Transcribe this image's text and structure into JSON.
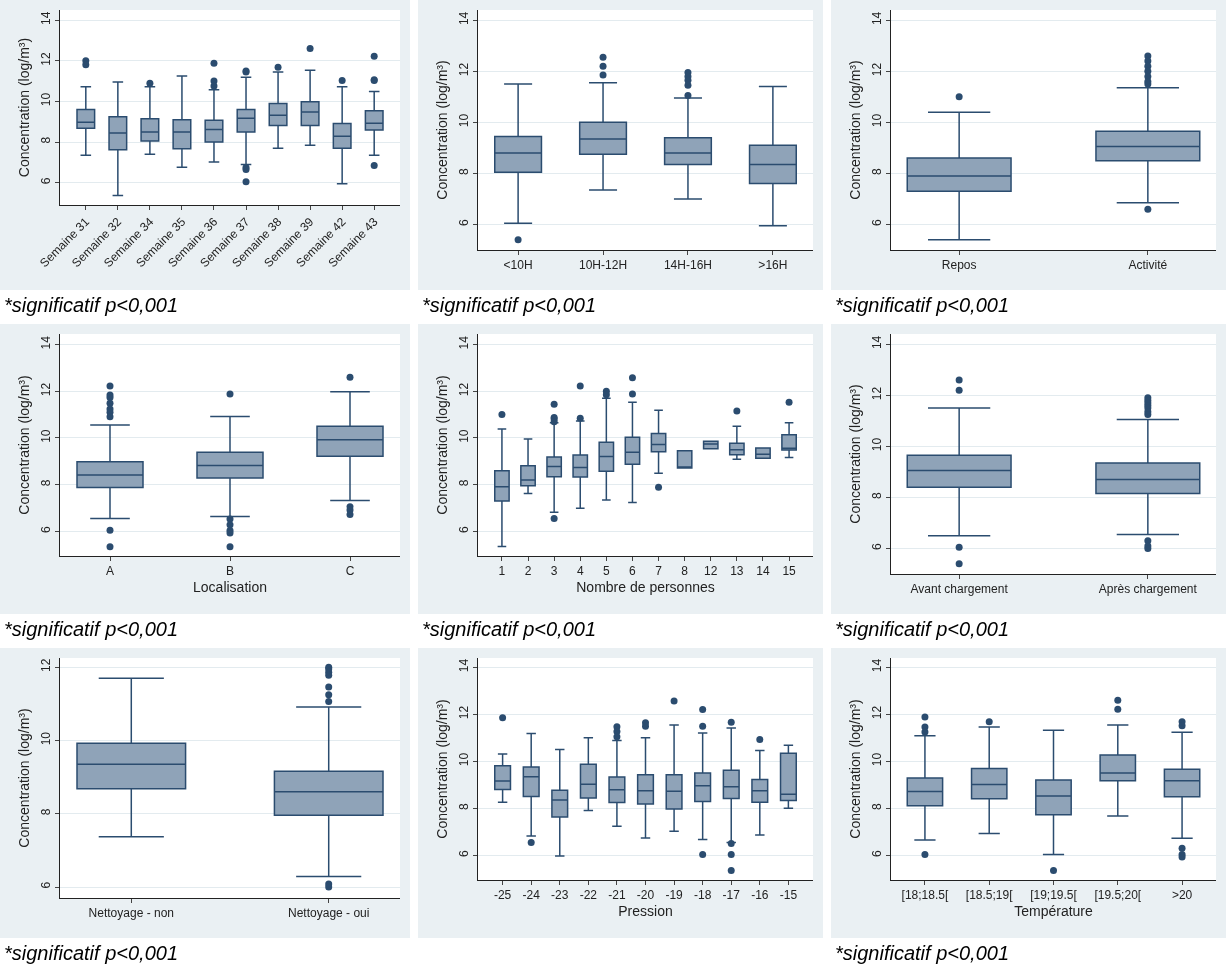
{
  "chart_data": [
    {
      "type": "box",
      "ylabel": "Concentration (log/m³)",
      "annotations": [
        "*significatif p<0,001"
      ],
      "color": "#8fa3b8",
      "grid": "y",
      "ylim": [
        4.9,
        14.5
      ],
      "yticks": [
        6,
        8,
        10,
        12,
        14
      ],
      "categories": [
        "Semaine 31",
        "Semaine 32",
        "Semaine 34",
        "Semaine 35",
        "Semaine 36",
        "Semaine 37",
        "Semaine 38",
        "Semaine 39",
        "Semaine 42",
        "Semaine 43"
      ],
      "boxes": [
        {
          "low": 7.35,
          "q1": 8.68,
          "median": 8.98,
          "q3": 9.6,
          "high": 10.72,
          "outliers": [
            12.0,
            11.8
          ]
        },
        {
          "low": 5.37,
          "q1": 7.62,
          "median": 8.44,
          "q3": 9.24,
          "high": 10.95
        },
        {
          "low": 7.4,
          "q1": 8.05,
          "median": 8.49,
          "q3": 9.15,
          "high": 10.72,
          "outliers": [
            10.9
          ]
        },
        {
          "low": 6.76,
          "q1": 7.67,
          "median": 8.49,
          "q3": 9.1,
          "high": 11.25
        },
        {
          "low": 7.02,
          "q1": 8.0,
          "median": 8.62,
          "q3": 9.07,
          "high": 10.58,
          "outliers": [
            11.88,
            11.0,
            10.76
          ]
        },
        {
          "low": 6.9,
          "q1": 8.5,
          "median": 9.17,
          "q3": 9.6,
          "high": 11.19,
          "outliers": [
            11.5,
            11.45,
            6.75,
            6.65,
            6.05
          ]
        },
        {
          "low": 7.7,
          "q1": 8.81,
          "median": 9.32,
          "q3": 9.9,
          "high": 11.45,
          "outliers": [
            11.68
          ]
        },
        {
          "low": 7.84,
          "q1": 8.81,
          "median": 9.48,
          "q3": 9.98,
          "high": 11.54,
          "outliers": [
            12.6
          ]
        },
        {
          "low": 5.95,
          "q1": 7.7,
          "median": 8.29,
          "q3": 8.91,
          "high": 10.72,
          "outliers": [
            11.03
          ]
        },
        {
          "low": 7.35,
          "q1": 8.59,
          "median": 8.93,
          "q3": 9.54,
          "high": 10.49,
          "outliers": [
            12.22,
            11.07,
            11.03,
            6.85
          ]
        }
      ]
    },
    {
      "type": "box",
      "ylabel": "Concentration (log/m³)",
      "annotations": [
        "*significatif p<0,001"
      ],
      "color": "#8fa3b8",
      "grid": "y",
      "ylim": [
        5.0,
        14.4
      ],
      "yticks": [
        6,
        8,
        10,
        12,
        14
      ],
      "categories": [
        "<10H",
        "10H-12H",
        "14H-16H",
        ">16H"
      ],
      "boxes": [
        {
          "low": 6.05,
          "q1": 8.05,
          "median": 8.8,
          "q3": 9.45,
          "high": 11.5,
          "outliers": [
            5.4
          ]
        },
        {
          "low": 7.35,
          "q1": 8.75,
          "median": 9.35,
          "q3": 10.0,
          "high": 11.55,
          "outliers": [
            12.55,
            12.2,
            11.85
          ]
        },
        {
          "low": 7.0,
          "q1": 8.35,
          "median": 8.8,
          "q3": 9.4,
          "high": 10.95,
          "outliers": [
            11.95,
            11.8,
            11.65,
            11.45,
            11.05
          ]
        },
        {
          "low": 5.95,
          "q1": 7.6,
          "median": 8.35,
          "q3": 9.1,
          "high": 11.4
        }
      ]
    },
    {
      "type": "box",
      "ylabel": "Concentration (log/m³)",
      "annotations": [
        "*significatif p<0,001"
      ],
      "color": "#8fa3b8",
      "grid": "y",
      "ylim": [
        5.0,
        14.4
      ],
      "yticks": [
        6,
        8,
        10,
        12,
        14
      ],
      "categories": [
        "Repos",
        "Activité"
      ],
      "boxes": [
        {
          "low": 5.4,
          "q1": 7.3,
          "median": 7.9,
          "q3": 8.6,
          "high": 10.4,
          "outliers": [
            11.0
          ]
        },
        {
          "low": 6.85,
          "q1": 8.5,
          "median": 9.05,
          "q3": 9.65,
          "high": 11.35,
          "outliers": [
            12.6,
            12.4,
            12.2,
            12.0,
            11.8,
            11.6,
            11.5,
            6.6
          ]
        }
      ]
    },
    {
      "type": "box",
      "ylabel": "Concentration (log/m³)",
      "xlabel": "Localisation",
      "annotations": [
        "*significatif p<0,001"
      ],
      "color": "#8fa3b8",
      "grid": "y",
      "ylim": [
        4.95,
        14.45
      ],
      "yticks": [
        6,
        8,
        10,
        12,
        14
      ],
      "categories": [
        "A",
        "B",
        "C"
      ],
      "boxes": [
        {
          "low": 6.56,
          "q1": 7.88,
          "median": 8.42,
          "q3": 8.98,
          "high": 10.56,
          "outliers": [
            12.23,
            11.84,
            11.73,
            11.49,
            11.24,
            11.1,
            10.91,
            6.05,
            5.35
          ]
        },
        {
          "low": 6.64,
          "q1": 8.29,
          "median": 8.82,
          "q3": 9.39,
          "high": 10.92,
          "outliers": [
            11.88,
            6.53,
            6.29,
            6.04,
            5.93,
            5.35
          ]
        },
        {
          "low": 7.32,
          "q1": 9.22,
          "median": 9.93,
          "q3": 10.5,
          "high": 11.98,
          "outliers": [
            12.6,
            7.06,
            6.92,
            6.73
          ]
        }
      ]
    },
    {
      "type": "box",
      "ylabel": "Concentration (log/m³)",
      "xlabel": "Nombre de personnes",
      "annotations": [
        "*significatif p<0,001"
      ],
      "color": "#8fa3b8",
      "grid": "y",
      "ylim": [
        4.95,
        14.45
      ],
      "yticks": [
        6,
        8,
        10,
        12,
        14
      ],
      "categories": [
        "1",
        "2",
        "3",
        "4",
        "5",
        "6",
        "7",
        "8",
        "12",
        "13",
        "14",
        "15"
      ],
      "boxes": [
        {
          "low": 5.36,
          "q1": 7.3,
          "median": 7.91,
          "q3": 8.6,
          "high": 10.39,
          "outliers": [
            11.0
          ]
        },
        {
          "low": 7.62,
          "q1": 7.96,
          "median": 8.2,
          "q3": 8.81,
          "high": 9.96
        },
        {
          "low": 6.82,
          "q1": 8.34,
          "median": 8.78,
          "q3": 9.19,
          "high": 10.65,
          "outliers": [
            11.44,
            10.88,
            10.81,
            10.7,
            6.56
          ]
        },
        {
          "low": 6.99,
          "q1": 8.33,
          "median": 8.74,
          "q3": 9.27,
          "high": 10.73,
          "outliers": [
            12.22,
            10.84
          ]
        },
        {
          "low": 7.35,
          "q1": 8.58,
          "median": 9.21,
          "q3": 9.82,
          "high": 11.7,
          "outliers": [
            12.0,
            11.85
          ]
        },
        {
          "low": 7.24,
          "q1": 8.88,
          "median": 9.39,
          "q3": 10.03,
          "high": 11.53,
          "outliers": [
            12.58,
            11.88
          ]
        },
        {
          "low": 8.49,
          "q1": 9.41,
          "median": 9.72,
          "q3": 10.19,
          "high": 11.19,
          "outliers": [
            7.89
          ]
        },
        {
          "low": 8.72,
          "q1": 8.72,
          "median": 8.72,
          "q3": 9.45,
          "high": 9.45
        },
        {
          "low": 9.54,
          "q1": 9.54,
          "median": 9.74,
          "q3": 9.86,
          "high": 9.86
        },
        {
          "low": 9.09,
          "q1": 9.28,
          "median": 9.5,
          "q3": 9.78,
          "high": 10.5,
          "outliers": [
            11.15
          ]
        },
        {
          "low": 9.13,
          "q1": 9.13,
          "median": 9.3,
          "q3": 9.57,
          "high": 9.57
        },
        {
          "low": 9.17,
          "q1": 9.49,
          "median": 9.56,
          "q3": 10.14,
          "high": 10.65,
          "outliers": [
            11.53
          ]
        }
      ]
    },
    {
      "type": "box",
      "ylabel": "Concentration (log/m³)",
      "annotations": [
        "*significatif p<0,001"
      ],
      "color": "#8fa3b8",
      "grid": "y",
      "ylim": [
        5.0,
        14.4
      ],
      "yticks": [
        6,
        8,
        10,
        12,
        14
      ],
      "categories": [
        "Avant chargement",
        "Après chargement"
      ],
      "boxes": [
        {
          "low": 6.5,
          "q1": 8.4,
          "median": 9.05,
          "q3": 9.65,
          "high": 11.5,
          "outliers": [
            12.6,
            12.2,
            6.05,
            5.4
          ]
        },
        {
          "low": 6.55,
          "q1": 8.15,
          "median": 8.7,
          "q3": 9.35,
          "high": 11.05,
          "outliers": [
            11.9,
            11.8,
            11.7,
            11.6,
            11.5,
            11.35,
            11.25,
            6.3,
            6.1,
            6.0
          ]
        }
      ]
    },
    {
      "type": "box",
      "ylabel": "Concentration (log/m³)",
      "annotations": [
        "*significatif p<0,001"
      ],
      "color": "#8fa3b8",
      "grid": "y",
      "ylim": [
        5.7,
        12.25
      ],
      "yticks": [
        6,
        8,
        10,
        12
      ],
      "categories": [
        "Nettoyage - non",
        "Nettoyage - oui"
      ],
      "boxes": [
        {
          "low": 7.37,
          "q1": 8.68,
          "median": 9.35,
          "q3": 9.92,
          "high": 11.7
        },
        {
          "low": 6.29,
          "q1": 7.96,
          "median": 8.6,
          "q3": 9.16,
          "high": 10.91,
          "outliers": [
            12.0,
            11.95,
            11.86,
            11.78,
            11.46,
            11.25,
            11.06,
            6.08,
            6.0
          ]
        }
      ]
    },
    {
      "type": "box",
      "ylabel": "Concentration (log/m³)",
      "xlabel": "Pression",
      "color": "#8fa3b8",
      "grid": "y",
      "ylim": [
        4.95,
        14.4
      ],
      "yticks": [
        6,
        8,
        10,
        12,
        14
      ],
      "categories": [
        "-25",
        "-24",
        "-23",
        "-22",
        "-21",
        "-20",
        "-19",
        "-18",
        "-17",
        "-16",
        "-15"
      ],
      "boxes": [
        {
          "low": 8.26,
          "q1": 8.8,
          "median": 9.16,
          "q3": 9.81,
          "high": 10.31,
          "outliers": [
            11.86
          ]
        },
        {
          "low": 6.82,
          "q1": 8.5,
          "median": 9.35,
          "q3": 9.76,
          "high": 11.19,
          "outliers": [
            6.55
          ]
        },
        {
          "low": 5.97,
          "q1": 7.63,
          "median": 8.36,
          "q3": 8.77,
          "high": 10.51
        },
        {
          "low": 7.91,
          "q1": 8.44,
          "median": 9.03,
          "q3": 9.88,
          "high": 11.01
        },
        {
          "low": 7.24,
          "q1": 8.25,
          "median": 8.79,
          "q3": 9.33,
          "high": 10.89,
          "outliers": [
            11.47,
            11.27,
            11.05
          ]
        },
        {
          "low": 6.74,
          "q1": 8.19,
          "median": 8.75,
          "q3": 9.43,
          "high": 11.01,
          "outliers": [
            11.64,
            11.5
          ]
        },
        {
          "low": 7.03,
          "q1": 7.97,
          "median": 8.73,
          "q3": 9.43,
          "high": 11.55,
          "outliers": [
            12.57
          ]
        },
        {
          "low": 6.67,
          "q1": 8.29,
          "median": 8.96,
          "q3": 9.5,
          "high": 11.21,
          "outliers": [
            12.21,
            11.5,
            6.04
          ]
        },
        {
          "low": 6.55,
          "q1": 8.42,
          "median": 8.92,
          "q3": 9.62,
          "high": 11.42,
          "outliers": [
            11.67,
            6.5,
            6.04,
            5.35
          ]
        },
        {
          "low": 6.87,
          "q1": 8.26,
          "median": 8.75,
          "q3": 9.23,
          "high": 10.46,
          "outliers": [
            10.93
          ]
        },
        {
          "low": 8.0,
          "q1": 8.33,
          "median": 8.6,
          "q3": 10.35,
          "high": 10.69
        }
      ]
    },
    {
      "type": "box",
      "ylabel": "Concentration (log/m³)",
      "xlabel": "Température",
      "annotations": [
        "*significatif p<0,001"
      ],
      "color": "#8fa3b8",
      "grid": "y",
      "ylim": [
        4.95,
        14.4
      ],
      "yticks": [
        6,
        8,
        10,
        12,
        14
      ],
      "categories": [
        "[18;18.5[",
        "[18.5;19[",
        "[19;19.5[",
        "[19.5;20[",
        ">20"
      ],
      "boxes": [
        {
          "low": 6.65,
          "q1": 8.11,
          "median": 8.72,
          "q3": 9.29,
          "high": 11.09,
          "outliers": [
            11.89,
            11.46,
            11.25,
            6.04
          ]
        },
        {
          "low": 6.93,
          "q1": 8.41,
          "median": 9.01,
          "q3": 9.7,
          "high": 11.46,
          "outliers": [
            11.69
          ]
        },
        {
          "low": 6.04,
          "q1": 7.73,
          "median": 8.53,
          "q3": 9.21,
          "high": 11.32,
          "outliers": [
            5.35
          ]
        },
        {
          "low": 7.67,
          "q1": 9.17,
          "median": 9.51,
          "q3": 10.27,
          "high": 11.55,
          "outliers": [
            12.6,
            12.22
          ]
        },
        {
          "low": 6.73,
          "q1": 8.49,
          "median": 9.18,
          "q3": 9.66,
          "high": 11.24,
          "outliers": [
            11.69,
            11.52,
            6.3,
            6.04,
            5.93
          ]
        }
      ]
    }
  ]
}
